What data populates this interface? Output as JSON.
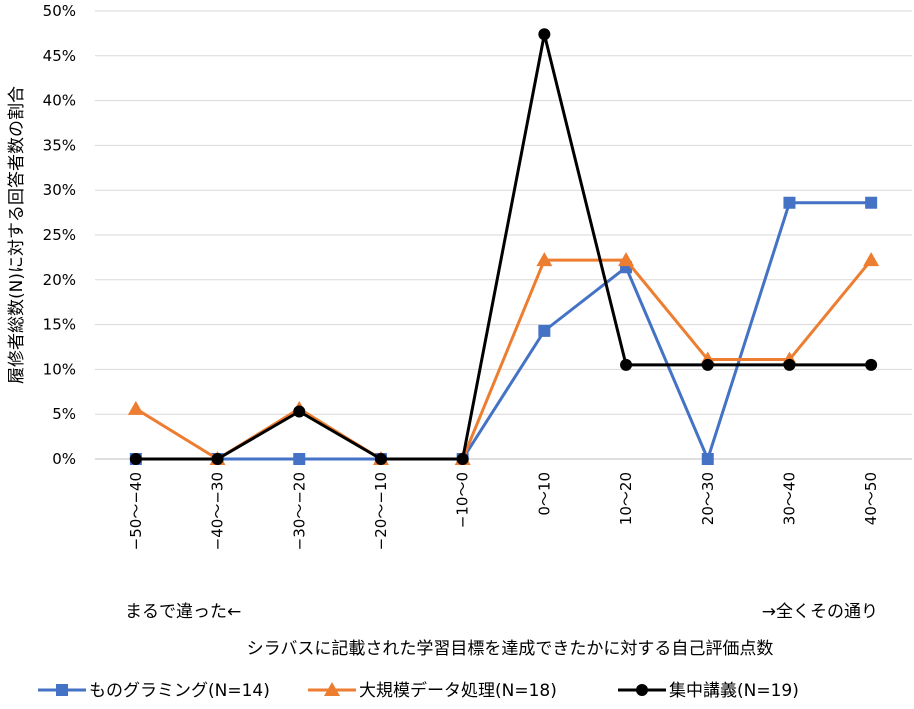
{
  "chart_data": {
    "type": "line",
    "categories": [
      "−50〜−40",
      "−40〜−30",
      "−30〜−20",
      "−20〜−10",
      "−10〜0",
      "0〜10",
      "10〜20",
      "20〜30",
      "30〜40",
      "40〜50"
    ],
    "series": [
      {
        "name": "ものグラミング(N=14)",
        "color": "#4472C4",
        "marker": "square",
        "values": [
          0,
          0,
          0,
          0,
          0,
          14.3,
          21.4,
          0,
          28.6,
          28.6
        ]
      },
      {
        "name": "大規模データ処理(N=18)",
        "color": "#ED7D31",
        "marker": "triangle",
        "values": [
          5.6,
          0,
          5.6,
          0,
          0,
          22.2,
          22.2,
          11.1,
          11.1,
          22.2
        ]
      },
      {
        "name": "集中講義(N=19)",
        "color": "#000000",
        "marker": "circle",
        "values": [
          0,
          0,
          5.3,
          0,
          0,
          47.4,
          10.5,
          10.5,
          10.5,
          10.5
        ]
      }
    ],
    "ylim": [
      0,
      50
    ],
    "yticks": [
      "0%",
      "5%",
      "10%",
      "15%",
      "20%",
      "25%",
      "30%",
      "35%",
      "40%",
      "45%",
      "50%"
    ],
    "ylabel": "履修者総数(N)に対する回答者数の割合",
    "xlabel": "シラバスに記載された学習目標を達成できたかに対する自己評価点数",
    "annotation_left": "まるで違った←",
    "annotation_right": "→全くその通り",
    "grid": true,
    "legend_position": "bottom"
  }
}
